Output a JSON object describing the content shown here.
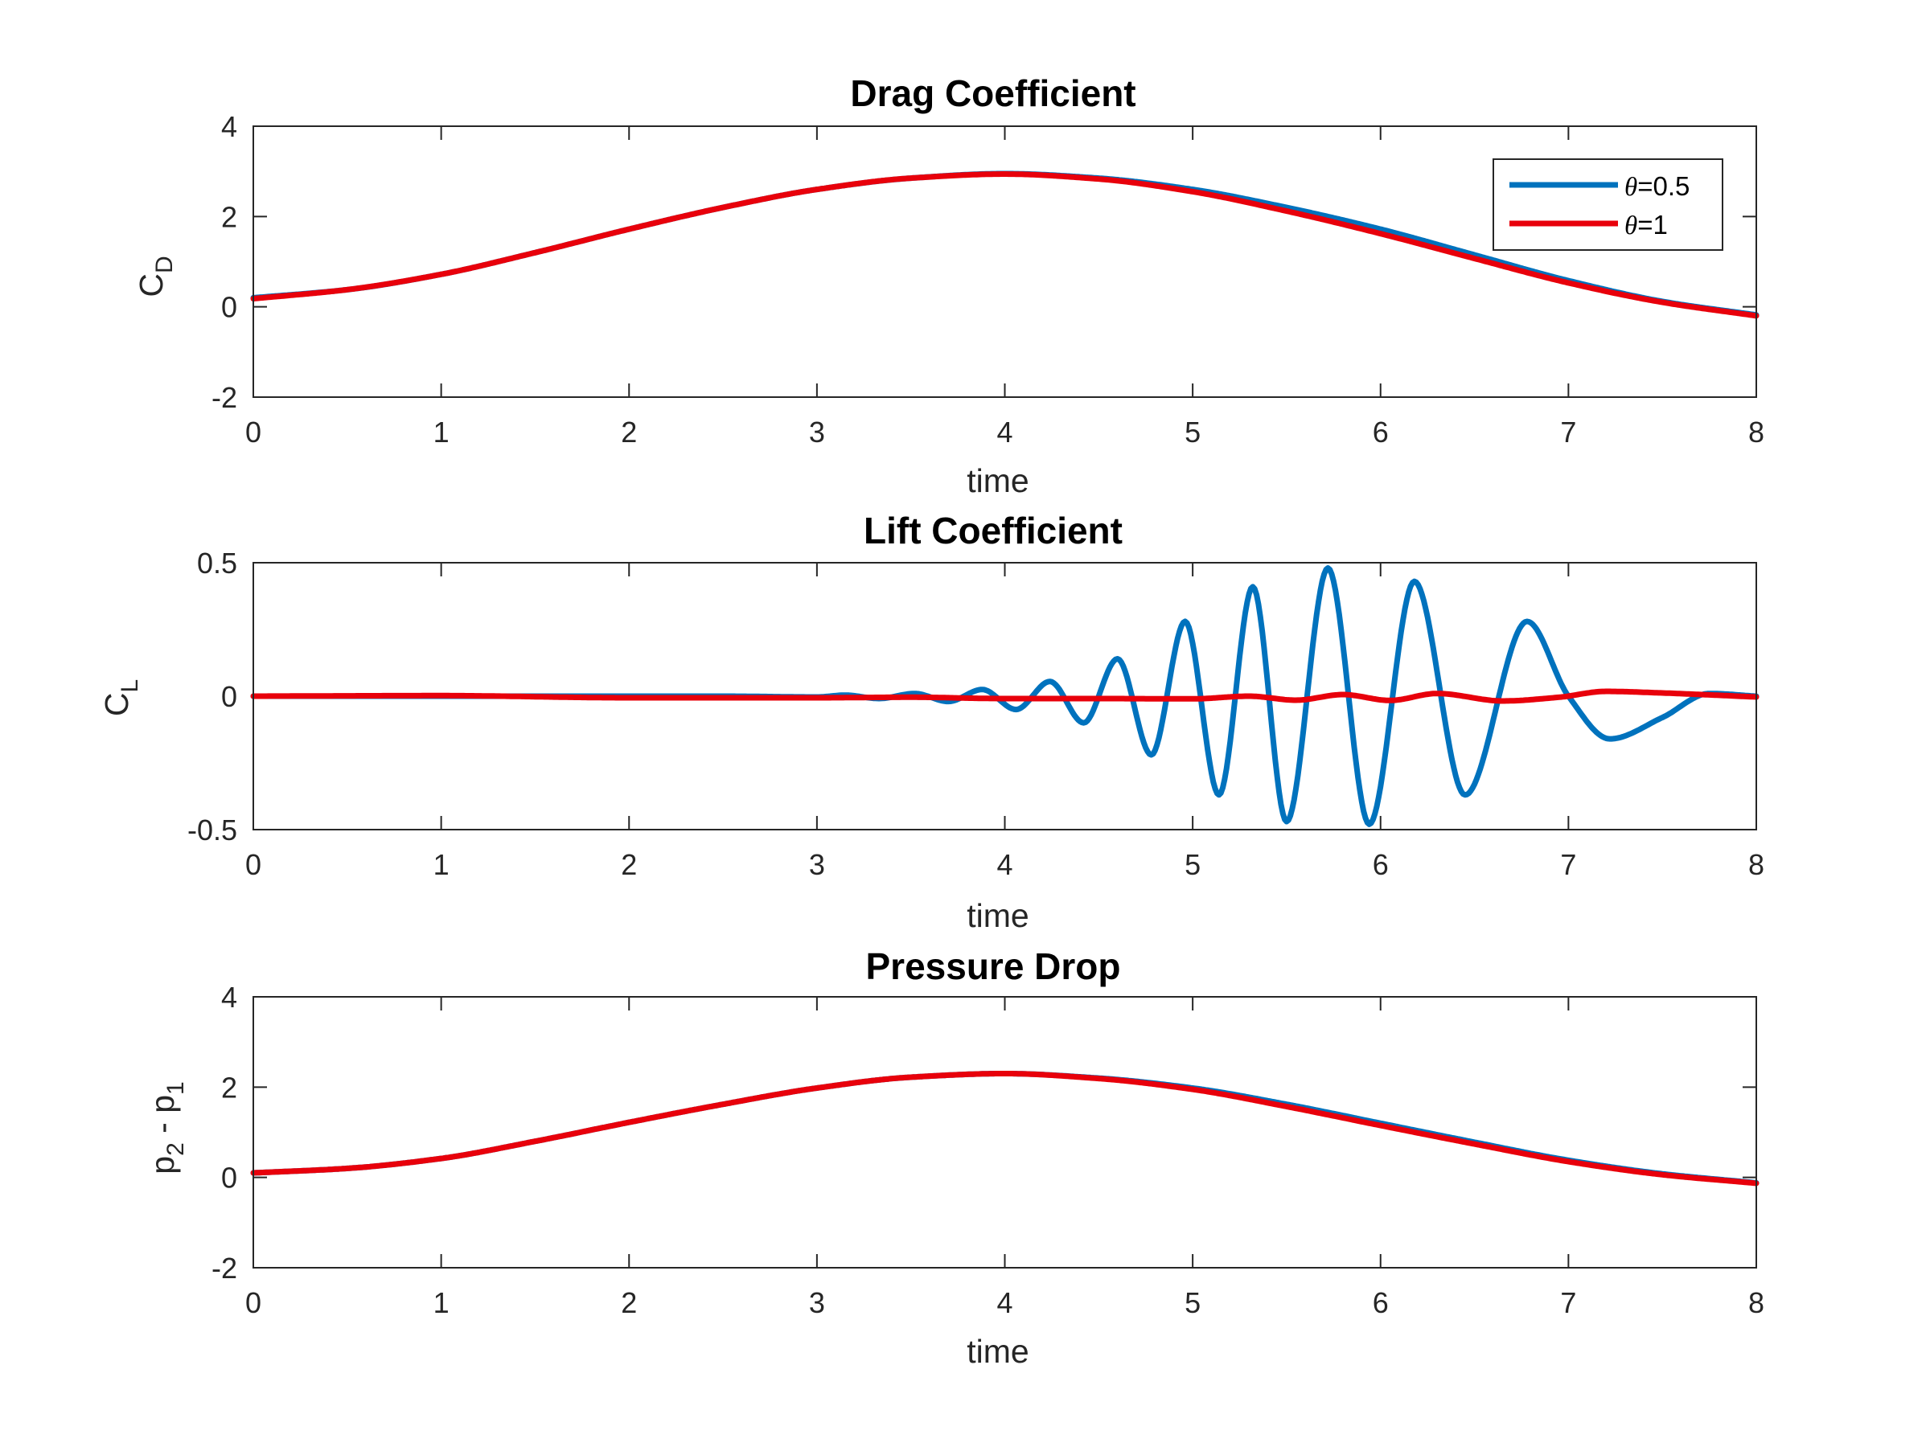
{
  "chart_data": [
    {
      "type": "line",
      "title": "Drag Coefficient",
      "xlabel": "time",
      "ylabel": {
        "main": "C",
        "sub": "D"
      },
      "xlim": [
        0,
        8
      ],
      "ylim": [
        -2,
        4
      ],
      "xticks": [
        "0",
        "1",
        "2",
        "3",
        "4",
        "5",
        "6",
        "7",
        "8"
      ],
      "yticks": [
        "-2",
        "0",
        "2",
        "4"
      ],
      "grid": false,
      "legend": {
        "position": "top-right",
        "entries": [
          {
            "symbol": "θ",
            "text": "=0.5",
            "color": "#0072BD"
          },
          {
            "symbol": "θ",
            "text": "=1",
            "color": "#E8000B"
          }
        ]
      },
      "series": [
        {
          "color": "#0072BD",
          "x": [
            0,
            0.5,
            1,
            1.5,
            2,
            2.5,
            3,
            3.5,
            4,
            4.5,
            5,
            5.5,
            6,
            6.5,
            7,
            7.5,
            8
          ],
          "y": [
            0.2,
            0.38,
            0.72,
            1.2,
            1.72,
            2.2,
            2.6,
            2.85,
            2.95,
            2.85,
            2.6,
            2.2,
            1.72,
            1.15,
            0.58,
            0.12,
            -0.18
          ]
        },
        {
          "color": "#E8000B",
          "x": [
            0,
            0.5,
            1,
            1.5,
            2,
            2.5,
            3,
            3.5,
            4,
            4.5,
            5,
            5.5,
            6,
            6.5,
            7,
            7.5,
            8
          ],
          "y": [
            0.18,
            0.38,
            0.72,
            1.2,
            1.72,
            2.2,
            2.6,
            2.85,
            2.94,
            2.83,
            2.55,
            2.12,
            1.62,
            1.07,
            0.53,
            0.1,
            -0.2
          ]
        }
      ]
    },
    {
      "type": "line",
      "title": "Lift Coefficient",
      "xlabel": "time",
      "ylabel": {
        "main": "C",
        "sub": "L"
      },
      "xlim": [
        0,
        8
      ],
      "ylim": [
        -0.5,
        0.5
      ],
      "xticks": [
        "0",
        "1",
        "2",
        "3",
        "4",
        "5",
        "6",
        "7",
        "8"
      ],
      "yticks": [
        "-0.5",
        "0",
        "0.5"
      ],
      "grid": false,
      "series": [
        {
          "color": "#0072BD",
          "x": [
            0,
            2.5,
            3.0,
            3.15,
            3.33,
            3.52,
            3.7,
            3.88,
            4.06,
            4.24,
            4.42,
            4.6,
            4.78,
            4.96,
            5.14,
            5.32,
            5.5,
            5.72,
            5.94,
            6.18,
            6.45,
            6.78,
            7.0,
            7.22,
            7.5,
            7.75,
            8.0
          ],
          "y": [
            0,
            0,
            -0.003,
            0.004,
            -0.009,
            0.01,
            -0.02,
            0.025,
            -0.05,
            0.055,
            -0.1,
            0.14,
            -0.22,
            0.28,
            -0.37,
            0.41,
            -0.47,
            0.48,
            -0.48,
            0.43,
            -0.37,
            0.28,
            0.0,
            -0.16,
            -0.08,
            0.01,
            0.0
          ]
        },
        {
          "color": "#E8000B",
          "x": [
            0,
            1.0,
            2.0,
            3.0,
            3.5,
            4.0,
            4.5,
            5.0,
            5.3,
            5.55,
            5.8,
            6.05,
            6.3,
            6.65,
            6.95,
            7.2,
            7.5,
            8.0
          ],
          "y": [
            0,
            0.002,
            -0.006,
            -0.006,
            -0.004,
            -0.009,
            -0.009,
            -0.01,
            0.0,
            -0.015,
            0.006,
            -0.016,
            0.01,
            -0.018,
            -0.004,
            0.018,
            0.012,
            -0.003
          ]
        }
      ]
    },
    {
      "type": "line",
      "title": "Pressure Drop",
      "xlabel": "time",
      "ylabel": {
        "p2": "p",
        "s2": "2",
        "mid": " - ",
        "p1": "p",
        "s1": "1"
      },
      "xlim": [
        0,
        8
      ],
      "ylim": [
        -2,
        4
      ],
      "xticks": [
        "0",
        "1",
        "2",
        "3",
        "4",
        "5",
        "6",
        "7",
        "8"
      ],
      "yticks": [
        "-2",
        "0",
        "2",
        "4"
      ],
      "grid": false,
      "series": [
        {
          "color": "#0072BD",
          "x": [
            0,
            0.5,
            1,
            1.5,
            2,
            2.5,
            3,
            3.5,
            4,
            4.5,
            5,
            5.5,
            6,
            6.5,
            7,
            7.5,
            8
          ],
          "y": [
            0.1,
            0.2,
            0.42,
            0.8,
            1.22,
            1.62,
            1.98,
            2.22,
            2.3,
            2.2,
            1.98,
            1.62,
            1.2,
            0.78,
            0.38,
            0.08,
            -0.12
          ]
        },
        {
          "color": "#E8000B",
          "x": [
            0,
            0.5,
            1,
            1.5,
            2,
            2.5,
            3,
            3.5,
            4,
            4.5,
            5,
            5.5,
            6,
            6.5,
            7,
            7.5,
            8
          ],
          "y": [
            0.1,
            0.2,
            0.42,
            0.8,
            1.22,
            1.62,
            1.98,
            2.22,
            2.3,
            2.19,
            1.95,
            1.57,
            1.15,
            0.74,
            0.35,
            0.06,
            -0.13
          ]
        }
      ]
    }
  ]
}
